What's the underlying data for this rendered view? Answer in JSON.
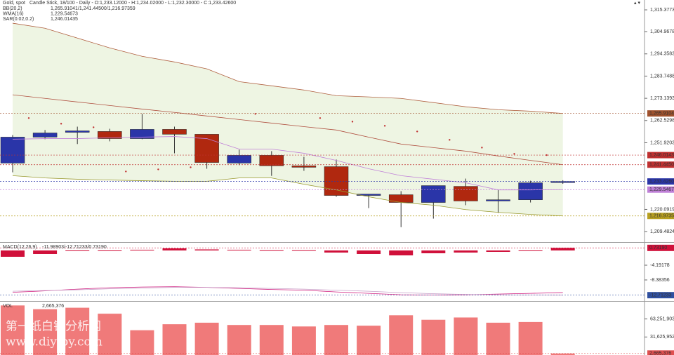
{
  "chart_data": [
    {
      "type": "candlestick",
      "title": "Gold, spot",
      "subtitle": "Candle Stick, 18/100 - Daily - O:1,233.12000 - H:1,234.02000 - L:1,232.30000 - C:1,233.42600",
      "open": [
        1242.19,
        1254.6,
        1256.9,
        1257.3,
        1253.9,
        1258.3,
        1255.96,
        1242.2,
        1245.9,
        1240.9,
        1240.5,
        1226.75,
        1227.1,
        1223.4,
        1231.1,
        1224.1,
        1224.7,
        1233.12
      ],
      "high": [
        1255.6,
        1258.0,
        1259.6,
        1258.6,
        1265.7,
        1259.6,
        1255.96,
        1248.6,
        1247.9,
        1245.2,
        1243.9,
        1227.4,
        1228.8,
        1231.45,
        1234.8,
        1229.4,
        1233.8,
        1234.02
      ],
      "low": [
        1237.8,
        1253.6,
        1251.3,
        1252.6,
        1253.6,
        1246.9,
        1239.5,
        1241.2,
        1236.1,
        1238.5,
        1226.1,
        1220.7,
        1211.6,
        1215.7,
        1222.1,
        1218.4,
        1223.4,
        1232.3
      ],
      "close": [
        1254.61,
        1256.6,
        1257.6,
        1253.9,
        1258.3,
        1255.96,
        1242.5,
        1245.9,
        1240.9,
        1240.2,
        1226.75,
        1227.4,
        1223.4,
        1231.45,
        1224.1,
        1224.7,
        1232.8,
        1233.426
      ],
      "up_color": "#2a35a8",
      "down_color": "#b0280f",
      "indicators": [
        {
          "name": "BB(20,2)",
          "readout": "1,265.91041/1,241.44500/1,216.97359",
          "color": "#a0522d",
          "fill": "#eef5e3",
          "lines": [
            {
              "color": "#b06040",
              "values": [
                1309.0,
                1306.6,
                1301.9,
                1297.2,
                1293.2,
                1290.5,
                1287.2,
                1281.1,
                1279.1,
                1277.1,
                1274.4,
                1273.8,
                1273.1,
                1271.1,
                1269.1,
                1267.7,
                1267.0,
                1265.91041
              ]
            },
            {
              "color": "#b05040",
              "values": [
                1274.8,
                1273.1,
                1271.4,
                1269.7,
                1268.0,
                1266.4,
                1264.7,
                1263.0,
                1261.3,
                1259.6,
                1258.0,
                1254.6,
                1251.3,
                1249.6,
                1247.9,
                1245.6,
                1243.5,
                1241.445
              ]
            },
            {
              "color": "#9a9a30",
              "values": [
                1236.2,
                1235.1,
                1234.5,
                1234.1,
                1233.8,
                1233.5,
                1233.5,
                1235.1,
                1235.1,
                1232.1,
                1229.4,
                1226.1,
                1223.4,
                1222.1,
                1220.0,
                1218.7,
                1217.7,
                1216.97359
              ]
            }
          ]
        },
        {
          "name": "WMA(16)",
          "readout": "1,229.54673",
          "color": "#c080d8",
          "lines": [
            {
              "color": "#c080d8",
              "values": [
                1253.6,
                1253.9,
                1253.9,
                1254.3,
                1254.6,
                1254.9,
                1253.9,
                1248.9,
                1248.9,
                1246.9,
                1243.5,
                1239.5,
                1236.2,
                1234.5,
                1232.8,
                1229.4,
                1229.4,
                1229.54673
              ]
            }
          ]
        },
        {
          "name": "SAR(0.02,0.2)",
          "readout": "1,246.01435",
          "color": "#c03030",
          "dots": [
            1263.7,
            1261.0,
            1259.3,
            1238.2,
            1239.2,
            1240.2,
            null,
            1265.7,
            null,
            1263.7,
            1262.0,
            1260.0,
            1257.3,
            1253.3,
            1249.6,
            1246.6,
            1246.01435,
            null
          ]
        }
      ],
      "price_labels": [
        {
          "value": 1265.91041,
          "label": "1,265.91041",
          "color": "#a0522d"
        },
        {
          "value": 1246.01435,
          "label": "1,246.01435",
          "color": "#c03030"
        },
        {
          "value": 1241.445,
          "label": "1,241.44500",
          "color": "#c03030"
        },
        {
          "value": 1233.426,
          "label": "1,233.42600",
          "color": "#2a35a8"
        },
        {
          "value": 1229.54673,
          "label": "1,229.54673",
          "color": "#c080d8"
        },
        {
          "value": 1216.97359,
          "label": "1,216.97359",
          "color": "#b8a020"
        }
      ],
      "ylim": [
        1204.5,
        1317.4
      ],
      "yticks": [
        {
          "value": 1209.48241,
          "label": "1,209.48241"
        },
        {
          "value": 1220.09191,
          "label": "1,220.09191"
        },
        {
          "value": 1251.92039,
          "label": "1,251.92039"
        },
        {
          "value": 1262.52989,
          "label": "1,262.52989"
        },
        {
          "value": 1273.13938,
          "label": "1,273.13938"
        },
        {
          "value": 1283.74888,
          "label": "1,283.74888"
        },
        {
          "value": 1294.35837,
          "label": "1,294.35837"
        },
        {
          "value": 1304.96786,
          "label": "1,304.96786"
        },
        {
          "value": 1315.37736,
          "label": "1,315.37736"
        }
      ]
    },
    {
      "type": "macd",
      "title": "MACD(12,26,9)",
      "readout": "-11.98903/-12.71233/0.73190",
      "color": "#d0103a",
      "values": [
        -1.8,
        -1.0,
        -0.2,
        -0.1,
        0.2,
        0.6,
        0.3,
        0.2,
        0.05,
        0.05,
        -0.6,
        -1.0,
        -1.4,
        -0.8,
        -0.6,
        -0.4,
        -0.1,
        0.7319
      ],
      "lines": [
        {
          "color": "#d02080",
          "values": [
            -11.9,
            -11.5,
            -11.0,
            -10.6,
            -10.4,
            -10.3,
            -10.5,
            -10.8,
            -11.1,
            -11.3,
            -11.8,
            -12.2,
            -12.6,
            -12.7,
            -12.6,
            -12.4,
            -12.2,
            -11.98903
          ]
        },
        {
          "color": "#c8a0c8",
          "values": [
            -11.6,
            -11.4,
            -11.2,
            -10.9,
            -10.7,
            -10.5,
            -10.5,
            -10.6,
            -10.8,
            -11.0,
            -11.3,
            -11.6,
            -12.0,
            -12.3,
            -12.5,
            -12.6,
            -12.7,
            -12.71233
          ]
        }
      ],
      "price_labels": [
        {
          "value": 0.7319,
          "label": "0.73190",
          "color": "#d0103a"
        },
        {
          "value": -12.71233,
          "label": "-12.71233",
          "color": "#3050a0"
        }
      ],
      "ylim": [
        -14.17,
        2.19
      ],
      "yticks": [
        -4.19178,
        -8.38356
      ]
    },
    {
      "type": "volume",
      "title": "VOL",
      "readout": "2,665,376",
      "color": "#f07a7a",
      "values": [
        87000000,
        80400000,
        83000000,
        72500000,
        43500000,
        54000000,
        56700000,
        52700000,
        52700000,
        50100000,
        52700000,
        51400000,
        69800000,
        61900000,
        65900000,
        56700000,
        58000000,
        2665376
      ],
      "price_labels": [
        {
          "value": 2665376,
          "label": "2,665,376",
          "color": "#e05050"
        }
      ],
      "ylim": [
        0,
        93600000
      ],
      "yticks": [
        {
          "value": 31625952,
          "label": "31,625,952"
        },
        {
          "value": 63251903,
          "label": "63,251,903"
        }
      ]
    }
  ],
  "watermark": [
    "第一纸白银分析网",
    "www.diyiby.com"
  ]
}
